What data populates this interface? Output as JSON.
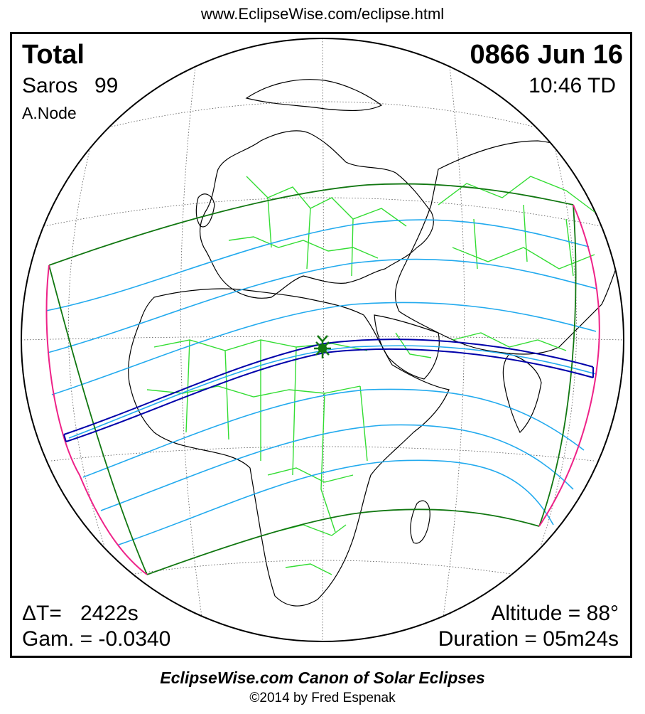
{
  "header": {
    "url": "www.EclipseWise.com/eclipse.html"
  },
  "eclipse": {
    "type": "Total",
    "saros_label": "Saros",
    "saros_number": "99",
    "node": "A.Node",
    "date": "0866 Jun 16",
    "time": "10:46 TD",
    "delta_t_label": "ΔT=",
    "delta_t_value": "2422s",
    "gamma": "Gam. = -0.0340",
    "altitude": "Altitude = 88°",
    "duration": "Duration = 05m24s"
  },
  "footer": {
    "line1": "EclipseWise.com Canon of Solar Eclipses",
    "line2": "©2014 by Fred Espenak"
  },
  "colors": {
    "coastline": "#000000",
    "borders": "#33dd33",
    "penumbra_limits": "#117711",
    "rise_set_curves": "#ee2288",
    "partial_isolines": "#22aaee",
    "totality_path": "#0000aa",
    "greatest_eclipse": "#117711"
  }
}
